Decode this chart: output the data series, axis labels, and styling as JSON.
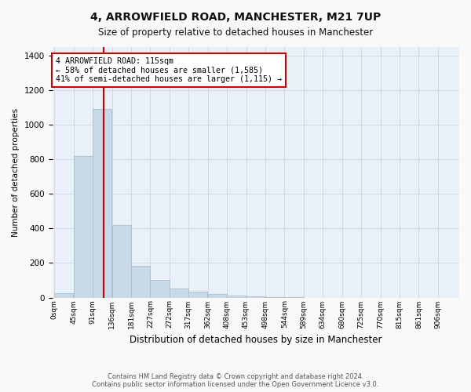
{
  "title_line1": "4, ARROWFIELD ROAD, MANCHESTER, M21 7UP",
  "title_line2": "Size of property relative to detached houses in Manchester",
  "xlabel": "Distribution of detached houses by size in Manchester",
  "ylabel": "Number of detached properties",
  "bar_values": [
    25,
    820,
    1090,
    420,
    185,
    100,
    50,
    35,
    20,
    10,
    5,
    2,
    1,
    0,
    0,
    0,
    0,
    0
  ],
  "bin_labels": [
    "0sqm",
    "45sqm",
    "91sqm",
    "136sqm",
    "181sqm",
    "227sqm",
    "272sqm",
    "317sqm",
    "362sqm",
    "408sqm",
    "453sqm",
    "498sqm",
    "544sqm",
    "589sqm",
    "634sqm",
    "680sqm",
    "725sqm",
    "770sqm",
    "815sqm",
    "861sqm",
    "906sqm"
  ],
  "bar_color": "#c9d9e8",
  "bar_edgecolor": "#a8bece",
  "property_line_x": 115,
  "bin_width": 45,
  "annotation_text": "4 ARROWFIELD ROAD: 115sqm\n← 58% of detached houses are smaller (1,585)\n41% of semi-detached houses are larger (1,115) →",
  "annotation_box_color": "#ffffff",
  "annotation_box_edgecolor": "#cc0000",
  "redline_color": "#cc0000",
  "ylim": [
    0,
    1450
  ],
  "yticks": [
    0,
    200,
    400,
    600,
    800,
    1000,
    1200,
    1400
  ],
  "grid_color": "#d0d8e8",
  "footnote": "Contains HM Land Registry data © Crown copyright and database right 2024.\nContains public sector information licensed under the Open Government Licence v3.0.",
  "fig_facecolor": "#f9f9f9",
  "ax_facecolor": "#eaf0f8"
}
